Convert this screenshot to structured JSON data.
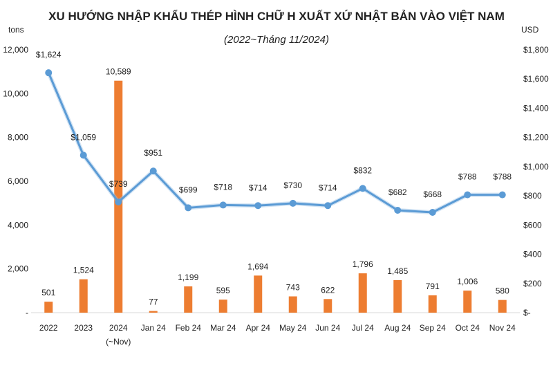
{
  "chart_data": {
    "type": "bar",
    "title": "XU HƯỚNG NHẬP KHẨU THÉP HÌNH CHỮ H XUẤT XỨ NHẬT BẢN VÀO VIỆT NAM",
    "subtitle": "(2022~Tháng 11/2024)",
    "categories": [
      "2022",
      "2023",
      "2024",
      "Jan 24",
      "Feb 24",
      "Mar 24",
      "Apr 24",
      "May 24",
      "Jun 24",
      "Jul 24",
      "Aug 24",
      "Sep 24",
      "Oct 24",
      "Nov 24"
    ],
    "category_sublabels": [
      "",
      "",
      "(~Nov)",
      "",
      "",
      "",
      "",
      "",
      "",
      "",
      "",
      "",
      "",
      ""
    ],
    "y_left": {
      "unit": "tons",
      "ylim": [
        0,
        12000
      ],
      "ticks": [
        0,
        2000,
        4000,
        6000,
        8000,
        10000,
        12000
      ],
      "tick_labels": [
        "-",
        "2,000",
        "4,000",
        "6,000",
        "8,000",
        "10,000",
        "12,000"
      ]
    },
    "y_right": {
      "unit": "USD",
      "ylim": [
        0,
        1800
      ],
      "ticks": [
        0,
        200,
        400,
        600,
        800,
        1000,
        1200,
        1400,
        1600,
        1800
      ],
      "tick_labels": [
        "$-",
        "$200",
        "$400",
        "$600",
        "$800",
        "$1,000",
        "$1,200",
        "$1,400",
        "$1,600",
        "$1,800"
      ]
    },
    "series": [
      {
        "kind": "bar",
        "axis": "left",
        "values": [
          501,
          1524,
          10589,
          77,
          1199,
          595,
          1694,
          743,
          622,
          1796,
          1485,
          791,
          1006,
          580
        ],
        "labels": [
          "501",
          "1,524",
          "10,589",
          "77",
          "1,199",
          "595",
          "1,694",
          "743",
          "622",
          "1,796",
          "1,485",
          "791",
          "1,006",
          "580"
        ],
        "color": "#ED7D31",
        "highlight_index": 2
      },
      {
        "kind": "line",
        "axis": "right",
        "values": [
          1624,
          1059,
          739,
          951,
          699,
          718,
          714,
          730,
          714,
          832,
          682,
          668,
          788,
          788
        ],
        "labels": [
          "$1,624",
          "$1,059",
          "$739",
          "$951",
          "$699",
          "$718",
          "$714",
          "$730",
          "$714",
          "$832",
          "$682",
          "$668",
          "$788",
          "$788"
        ],
        "color": "#5B9BD5"
      }
    ],
    "grid": false,
    "legend": "none"
  }
}
